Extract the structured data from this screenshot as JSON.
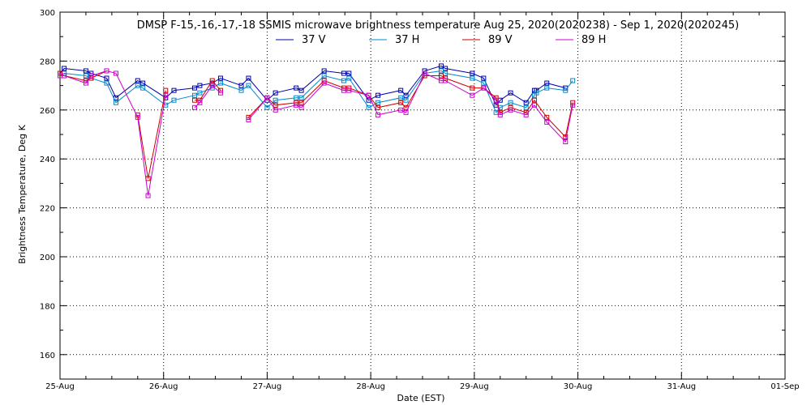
{
  "chart_data": {
    "type": "line",
    "title": "DMSP F-15,-16,-17,-18 SSMIS microwave brightness temperature Aug 25, 2020(2020238) - Sep  1, 2020(2020245)",
    "xlabel": "Date (EST)",
    "ylabel": "Brightness Temperature, Deg K",
    "xlim": [
      0,
      7
    ],
    "ylim": [
      150,
      300
    ],
    "x_unit": "days since 25-Aug 00:00 EST",
    "xtick_labels": [
      "25-Aug",
      "26-Aug",
      "27-Aug",
      "28-Aug",
      "29-Aug",
      "30-Aug",
      "31-Aug",
      "01-Sep"
    ],
    "ytick_values": [
      160,
      180,
      200,
      220,
      240,
      260,
      280,
      300
    ],
    "grid": true,
    "legend_position": "top-center",
    "series": [
      {
        "name": "37 V",
        "color": "#0000aa",
        "segments": [
          {
            "x": [
              0.0,
              0.04,
              0.25,
              0.3,
              0.45,
              0.54,
              0.75,
              0.8,
              1.02,
              1.1,
              1.3,
              1.35,
              1.47,
              1.55,
              1.75,
              1.82,
              2.0,
              2.08,
              2.28,
              2.33,
              2.55,
              2.74,
              2.79,
              2.98,
              3.07,
              3.29,
              3.34,
              3.52,
              3.68,
              3.72,
              3.98,
              4.09,
              4.21,
              4.25,
              4.35,
              4.5,
              4.58
            ],
            "y": [
              275,
              277,
              276,
              275,
              273,
              265,
              272,
              271,
              265,
              268,
              269,
              270,
              271,
              273,
              270,
              273,
              264,
              267,
              269,
              268,
              276,
              275,
              275,
              264,
              266,
              268,
              266,
              276,
              278,
              277,
              275,
              273,
              262,
              264,
              267,
              263,
              268
            ]
          },
          {
            "x": [
              4.6,
              4.7,
              4.88
            ],
            "y": [
              268,
              271,
              269
            ]
          }
        ]
      },
      {
        "name": "37 H",
        "color": "#0088cc",
        "segments": [
          {
            "x": [
              0.0,
              0.04,
              0.25,
              0.3,
              0.45,
              0.54,
              0.75,
              0.8,
              1.02,
              1.1,
              1.3,
              1.35,
              1.47,
              1.55,
              1.75,
              1.82,
              2.0,
              2.08,
              2.28,
              2.33,
              2.55,
              2.74,
              2.79,
              2.98,
              3.07,
              3.29,
              3.34,
              3.52,
              3.68,
              3.72,
              3.98,
              4.09,
              4.21,
              4.25,
              4.35,
              4.5,
              4.58
            ],
            "y": [
              274,
              275,
              274,
              273,
              271,
              263,
              270,
              269,
              262,
              264,
              266,
              267,
              269,
              271,
              268,
              270,
              261,
              264,
              265,
              265,
              274,
              272,
              273,
              261,
              263,
              265,
              264,
              275,
              276,
              275,
              273,
              271,
              259,
              261,
              263,
              261,
              266
            ]
          },
          {
            "x": [
              4.6,
              4.7,
              4.88,
              4.95
            ],
            "y": [
              267,
              269,
              268,
              272
            ]
          }
        ]
      },
      {
        "name": "89 V",
        "color": "#cc0000",
        "segments": [
          {
            "x": [
              0.0,
              0.04,
              0.25,
              0.3,
              0.45
            ],
            "y": [
              275,
              274,
              272,
              273,
              276
            ]
          },
          {
            "x": [
              0.75,
              0.85,
              1.02
            ],
            "y": [
              258,
              232,
              268
            ]
          },
          {
            "x": [
              1.3,
              1.35,
              1.47,
              1.55
            ],
            "y": [
              264,
              264,
              272,
              268
            ]
          },
          {
            "x": [
              1.82,
              2.0,
              2.08,
              2.28,
              2.33,
              2.55,
              2.74,
              2.79,
              2.98,
              3.07,
              3.29,
              3.34,
              3.52,
              3.68,
              3.72,
              3.98,
              4.09,
              4.21,
              4.25,
              4.35,
              4.5,
              4.58,
              4.7,
              4.88,
              4.95
            ],
            "y": [
              257,
              265,
              262,
              263,
              263,
              272,
              269,
              269,
              266,
              261,
              263,
              261,
              274,
              274,
              273,
              269,
              269,
              265,
              259,
              261,
              259,
              264,
              257,
              249,
              263
            ]
          }
        ]
      },
      {
        "name": "89 H",
        "color": "#cc00cc",
        "segments": [
          {
            "x": [
              0.0,
              0.04,
              0.25,
              0.3,
              0.45,
              0.54,
              0.75,
              0.85,
              1.02
            ],
            "y": [
              274,
              274,
              271,
              274,
              276,
              275,
              257,
              225,
              266
            ]
          },
          {
            "x": [
              1.3,
              1.35,
              1.47,
              1.55
            ],
            "y": [
              261,
              263,
              270,
              267
            ]
          },
          {
            "x": [
              1.82,
              2.0,
              2.08,
              2.28,
              2.33,
              2.55,
              2.74,
              2.79,
              2.98,
              3.07,
              3.29,
              3.34,
              3.52,
              3.68,
              3.72,
              3.98,
              4.09,
              4.21,
              4.25,
              4.35,
              4.5,
              4.58,
              4.7,
              4.88,
              4.95
            ],
            "y": [
              256,
              265,
              260,
              262,
              261,
              271,
              268,
              268,
              266,
              258,
              260,
              259,
              275,
              272,
              272,
              266,
              269,
              264,
              258,
              260,
              258,
              262,
              255,
              247,
              262
            ]
          }
        ]
      }
    ]
  }
}
